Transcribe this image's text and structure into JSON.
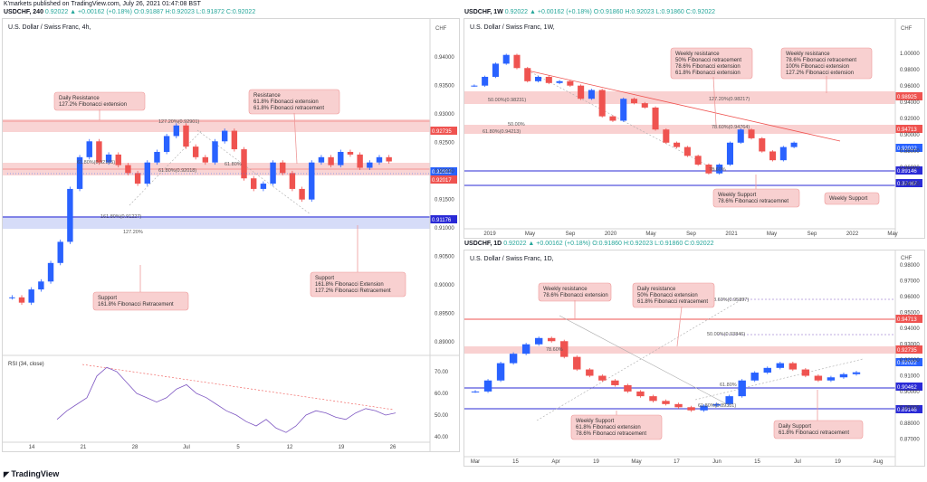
{
  "header": {
    "publisher": "K'markets published on TradingView.com, July 26, 2021 01:47:08 BST",
    "symbol": "USDCHF, 240",
    "change": "0.92022 ▲ +0.00162 (+0.18%)",
    "ohlc": "O:0.91887 H:0.92023 L:0.91872 C:0.92022"
  },
  "footer": "TradingView",
  "colors": {
    "up": "#2962ff",
    "down": "#ef5350",
    "resistance": "#f8c9c9",
    "support_line": "#2a2ad6",
    "trend": "#ef5350"
  },
  "panels": [
    {
      "title": "U.S. Dollar / Swiss Franc, 4h,",
      "currency": "CHF",
      "x_ticks": [
        "14",
        "21",
        "28",
        "Jul",
        "5",
        "12",
        "19",
        "26"
      ],
      "y_ticks": [
        "0.94000",
        "0.93500",
        "0.93000",
        "0.92500",
        "0.92000",
        "0.91500",
        "0.91000",
        "0.90500",
        "0.90000",
        "0.89500",
        "0.89000"
      ],
      "price_chips": [
        {
          "t": "0.92735",
          "c": "#ef5350"
        },
        {
          "t": "0.92022",
          "c": "#2962ff"
        },
        {
          "t": "0.92017",
          "c": "#ef5350"
        },
        {
          "t": "0.91176",
          "c": "#2a2ad6"
        }
      ],
      "fib_labels": [
        "127.20%(0.92901)",
        "61.80%(0.92165)",
        "61.80%(0.92018)",
        "61.80%",
        "161.80%(0.91227)",
        "127.20%"
      ],
      "callouts": [
        {
          "lines": [
            "Daily Resistance",
            "127.2% Fibonacci extension"
          ]
        },
        {
          "lines": [
            "Resistance",
            "61.8% Fibonacci extension",
            "61.8% Fibonacci retracement"
          ]
        },
        {
          "lines": [
            "Support",
            "161.8% Fibonacci Extension",
            "127.2% Fibonacci Retracement"
          ]
        },
        {
          "lines": [
            "Support",
            "161.8% Fibonacci Retracement"
          ]
        }
      ],
      "rsi": {
        "title": "RSI (34, close)",
        "y_ticks": [
          "70.00",
          "60.00",
          "50.00",
          "40.00"
        ]
      }
    },
    {
      "symbol": "USDCHF, 1W",
      "title": "U.S. Dollar / Swiss Franc, 1W,",
      "currency": "CHF",
      "change": "0.92022 ▲ +0.00162 (+0.18%)",
      "ohlc": "O:0.91860 H:0.92023 L:0.91860 C:0.92022",
      "x_ticks": [
        "2019",
        "May",
        "Sep",
        "2020",
        "May",
        "Sep",
        "2021",
        "May",
        "Sep",
        "2022",
        "May"
      ],
      "y_ticks": [
        "1.00000",
        "0.98000",
        "0.96000",
        "0.94000",
        "0.92000",
        "0.90000",
        "0.88000",
        "0.86000",
        "0.84000"
      ],
      "price_chips": [
        {
          "t": "0.98925",
          "c": "#ef5350"
        },
        {
          "t": "0.94713",
          "c": "#ef5350"
        },
        {
          "t": "0.92022",
          "c": "#2962ff"
        },
        {
          "t": "0.89146",
          "c": "#2a2ad6"
        },
        {
          "t": "0.87487",
          "c": "#2a2ad6"
        }
      ],
      "fib_labels": [
        "50.00%(0.98231)",
        "127.20%(0.98217)",
        "50.00%",
        "61.80%(0.94213)",
        "78.60%(0.94764)",
        "78.60%"
      ],
      "callouts": [
        {
          "lines": [
            "Weekly resistance",
            "50% Fibonacci retracement",
            "78.6% Fibonacci extension",
            "61.8% Fibonacci extension"
          ]
        },
        {
          "lines": [
            "Weekly resistance",
            "78.6% Fibonacci retracement",
            "100% Fibonacci extension",
            "127.2% Fibonacci extension"
          ]
        },
        {
          "lines": [
            "Weekly Support",
            "78.6% Fibonacci retracemnet"
          ]
        },
        {
          "lines": [
            "Weekly Support"
          ]
        }
      ]
    },
    {
      "symbol": "USDCHF, 1D",
      "title": "U.S. Dollar / Swiss Franc, 1D,",
      "currency": "CHF",
      "change": "0.92022 ▲ +0.00162 (+0.18%)",
      "ohlc": "O:0.91860 H:0.92023 L:0.91860 C:0.92022",
      "x_ticks": [
        "Mar",
        "15",
        "Apr",
        "19",
        "May",
        "17",
        "Jun",
        "15",
        "Jul",
        "19",
        "Aug"
      ],
      "y_ticks": [
        "0.98000",
        "0.97000",
        "0.96000",
        "0.95000",
        "0.94000",
        "0.93000",
        "0.92000",
        "0.91000",
        "0.90000",
        "0.89000",
        "0.88000",
        "0.87000"
      ],
      "price_chips": [
        {
          "t": "0.94713",
          "c": "#ef5350"
        },
        {
          "t": "0.92735",
          "c": "#ef5350"
        },
        {
          "t": "0.92022",
          "c": "#2962ff"
        },
        {
          "t": "0.90462",
          "c": "#2a2ad6"
        },
        {
          "t": "0.89146",
          "c": "#2a2ad6"
        }
      ],
      "fib_labels": [
        "78.60%(0.95897)",
        "50.00%(0.93846)",
        "61.80%",
        "61.80%(0.89331)",
        "78.60%"
      ],
      "callouts": [
        {
          "lines": [
            "Weekly resistance",
            "78.6% Fibonacci extension"
          ]
        },
        {
          "lines": [
            "Daily resistance",
            "50% Fibonacci extension",
            "61.8% Fibonacci retracement"
          ]
        },
        {
          "lines": [
            "Weekly Support",
            "61.8% Fibonacci extension",
            "78.6% Fibonacci retracement"
          ]
        },
        {
          "lines": [
            "Daily Support",
            "61.8% Fibonacci retracement"
          ]
        }
      ]
    }
  ],
  "chart_data": [
    {
      "type": "line",
      "title": "U.S. Dollar / Swiss Franc, 4h",
      "series": [
        {
          "name": "USDCHF",
          "values": [
            0.8945,
            0.8935,
            0.896,
            0.8975,
            0.901,
            0.905,
            0.915,
            0.921,
            0.924,
            0.92,
            0.9215,
            0.9195,
            0.918,
            0.916,
            0.92,
            0.922,
            0.925,
            0.927,
            0.923,
            0.921,
            0.92,
            0.924,
            0.926,
            0.9225,
            0.917,
            0.915,
            0.916,
            0.92,
            0.918,
            0.915,
            0.913,
            0.92,
            0.921,
            0.9195,
            0.922,
            0.9215,
            0.919,
            0.92,
            0.921,
            0.9202
          ]
        }
      ]
    },
    {
      "type": "line",
      "title": "U.S. Dollar / Swiss Franc, 1W",
      "series": [
        {
          "name": "USDCHF",
          "values": [
            0.985,
            0.995,
            1.01,
            1.02,
            1.005,
            0.99,
            0.995,
            0.988,
            0.99,
            0.985,
            0.97,
            0.98,
            0.95,
            0.945,
            0.97,
            0.965,
            0.96,
            0.935,
            0.92,
            0.915,
            0.905,
            0.895,
            0.885,
            0.895,
            0.92,
            0.935,
            0.925,
            0.91,
            0.9,
            0.915,
            0.92
          ]
        }
      ]
    },
    {
      "type": "line",
      "title": "U.S. Dollar / Swiss Franc, 1D",
      "series": [
        {
          "name": "USDCHF",
          "values": [
            0.908,
            0.915,
            0.926,
            0.932,
            0.938,
            0.942,
            0.94,
            0.93,
            0.922,
            0.918,
            0.915,
            0.912,
            0.908,
            0.905,
            0.902,
            0.9,
            0.898,
            0.896,
            0.899,
            0.9,
            0.905,
            0.915,
            0.92,
            0.923,
            0.926,
            0.922,
            0.918,
            0.915,
            0.917,
            0.919,
            0.9202
          ]
        }
      ]
    }
  ]
}
